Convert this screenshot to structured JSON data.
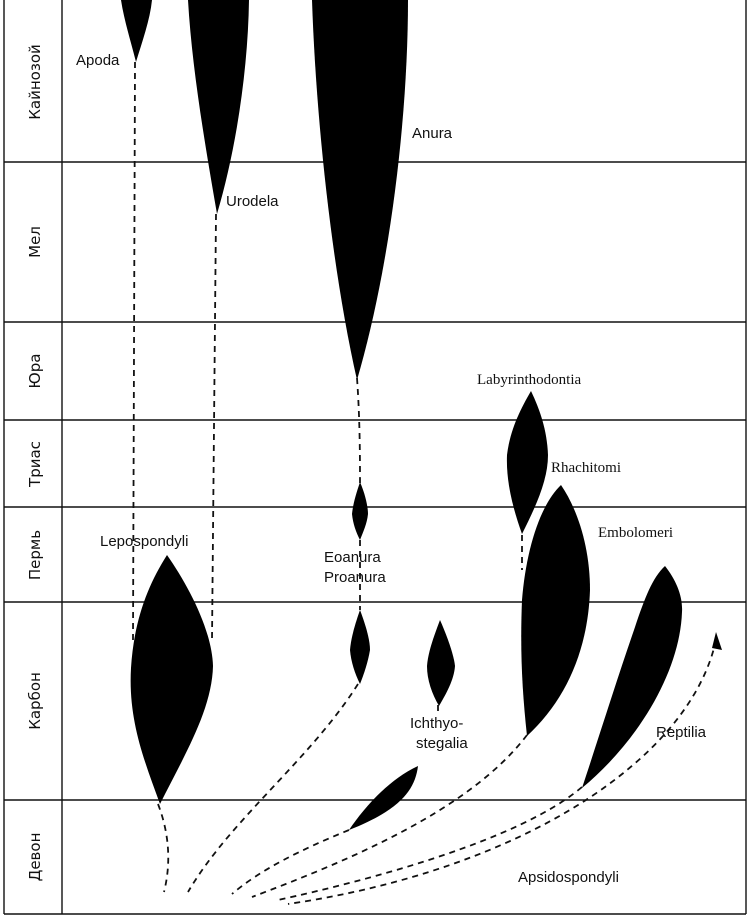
{
  "periods": [
    {
      "id": "cenozoic",
      "label": "Кайнозой"
    },
    {
      "id": "cretaceous",
      "label": "Мел"
    },
    {
      "id": "jurassic",
      "label": "Юра"
    },
    {
      "id": "triassic",
      "label": "Триас"
    },
    {
      "id": "permian",
      "label": "Пермь"
    },
    {
      "id": "carboniferous",
      "label": "Карбон"
    },
    {
      "id": "devonian",
      "label": "Девон"
    }
  ],
  "taxa": {
    "apoda": "Apoda",
    "anura": "Anura",
    "urodela": "Urodela",
    "labyrinthodontia": "Labyrinthodontia",
    "rhachitomi": "Rhachitomi",
    "embolomeri": "Embolomeri",
    "lepospondyli": "Lepospondyli",
    "eoanura": "Eoanura",
    "proanura": "Proanura",
    "ichthyostegalia_1": "Ichthyo-",
    "ichthyostegalia_2": "stegalia",
    "reptilia": "Reptilia",
    "apsidospondyli": "Apsidospondyli"
  },
  "colors": {
    "ink": "#000000",
    "background": "#ffffff"
  }
}
